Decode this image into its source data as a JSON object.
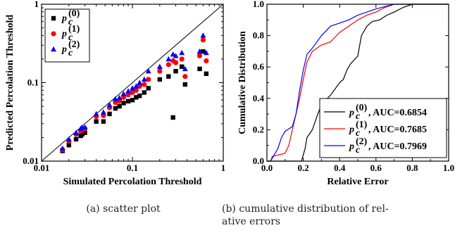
{
  "chart_data": [
    {
      "type": "scatter",
      "xlabel": "Simulated Percolation Threshold",
      "ylabel": "Predicted Percolation Threshold",
      "xscale": "log",
      "yscale": "log",
      "xlim": [
        0.01,
        1
      ],
      "ylim": [
        0.01,
        1
      ],
      "x_ticks": [
        "0.01",
        "0.1",
        "1"
      ],
      "y_ticks": [
        "0.01",
        "0.1",
        "1"
      ],
      "reference_line": "y = x",
      "legend": "top-left",
      "series": [
        {
          "name": "p_c^(0)",
          "name_parts": {
            "base": "p",
            "sub": "c",
            "sup": "(0)"
          },
          "color": "#000000",
          "marker": "square",
          "points": [
            [
              0.017,
              0.0135
            ],
            [
              0.02,
              0.016
            ],
            [
              0.024,
              0.019
            ],
            [
              0.027,
              0.021
            ],
            [
              0.028,
              0.022
            ],
            [
              0.03,
              0.023
            ],
            [
              0.04,
              0.032
            ],
            [
              0.048,
              0.032
            ],
            [
              0.056,
              0.04
            ],
            [
              0.065,
              0.047
            ],
            [
              0.072,
              0.05
            ],
            [
              0.08,
              0.055
            ],
            [
              0.09,
              0.058
            ],
            [
              0.1,
              0.06
            ],
            [
              0.11,
              0.065
            ],
            [
              0.12,
              0.068
            ],
            [
              0.135,
              0.075
            ],
            [
              0.15,
              0.085
            ],
            [
              0.2,
              0.11
            ],
            [
              0.25,
              0.12
            ],
            [
              0.28,
              0.036
            ],
            [
              0.3,
              0.14
            ],
            [
              0.35,
              0.16
            ],
            [
              0.38,
              0.095
            ],
            [
              0.55,
              0.15
            ],
            [
              0.6,
              0.25
            ],
            [
              0.65,
              0.13
            ]
          ]
        },
        {
          "name": "p_c^(1)",
          "name_parts": {
            "base": "p",
            "sub": "c",
            "sup": "(1)"
          },
          "color": "#ff0000",
          "marker": "circle",
          "points": [
            [
              0.017,
              0.014
            ],
            [
              0.02,
              0.018
            ],
            [
              0.024,
              0.022
            ],
            [
              0.027,
              0.024
            ],
            [
              0.028,
              0.025
            ],
            [
              0.03,
              0.026
            ],
            [
              0.04,
              0.037
            ],
            [
              0.048,
              0.038
            ],
            [
              0.056,
              0.048
            ],
            [
              0.065,
              0.056
            ],
            [
              0.072,
              0.058
            ],
            [
              0.08,
              0.065
            ],
            [
              0.09,
              0.07
            ],
            [
              0.1,
              0.075
            ],
            [
              0.11,
              0.08
            ],
            [
              0.12,
              0.09
            ],
            [
              0.135,
              0.095
            ],
            [
              0.15,
              0.11
            ],
            [
              0.2,
              0.14
            ],
            [
              0.25,
              0.17
            ],
            [
              0.28,
              0.19
            ],
            [
              0.3,
              0.18
            ],
            [
              0.35,
              0.2
            ],
            [
              0.38,
              0.12
            ],
            [
              0.55,
              0.22
            ],
            [
              0.6,
              0.35
            ],
            [
              0.65,
              0.19
            ]
          ]
        },
        {
          "name": "p_c^(2)",
          "name_parts": {
            "base": "p",
            "sub": "c",
            "sup": "(2)"
          },
          "color": "#0000ff",
          "marker": "triangle",
          "points": [
            [
              0.017,
              0.0145
            ],
            [
              0.02,
              0.019
            ],
            [
              0.024,
              0.023
            ],
            [
              0.027,
              0.026
            ],
            [
              0.028,
              0.027
            ],
            [
              0.03,
              0.027
            ],
            [
              0.04,
              0.04
            ],
            [
              0.048,
              0.042
            ],
            [
              0.056,
              0.052
            ],
            [
              0.065,
              0.062
            ],
            [
              0.072,
              0.064
            ],
            [
              0.08,
              0.072
            ],
            [
              0.09,
              0.078
            ],
            [
              0.1,
              0.085
            ],
            [
              0.11,
              0.09
            ],
            [
              0.12,
              0.1
            ],
            [
              0.135,
              0.11
            ],
            [
              0.15,
              0.14
            ],
            [
              0.2,
              0.16
            ],
            [
              0.25,
              0.2
            ],
            [
              0.28,
              0.23
            ],
            [
              0.3,
              0.22
            ],
            [
              0.35,
              0.24
            ],
            [
              0.38,
              0.15
            ],
            [
              0.55,
              0.25
            ],
            [
              0.6,
              0.4
            ],
            [
              0.65,
              0.24
            ]
          ]
        }
      ]
    },
    {
      "type": "line",
      "xlabel": "Relative Error",
      "ylabel": "Cumulative Distribution",
      "xlim": [
        0,
        1
      ],
      "ylim": [
        0,
        1
      ],
      "x_ticks": [
        "0.0",
        "0.2",
        "0.4",
        "0.6",
        "0.8",
        "1.0"
      ],
      "y_ticks": [
        "0.0",
        "0.2",
        "0.4",
        "0.6",
        "0.8",
        "1.0"
      ],
      "legend": "bottom-right",
      "series": [
        {
          "name": "p_c^(0), AUC=0.6854",
          "name_parts": {
            "base": "p",
            "sub": "c",
            "sup": "(0)",
            "suffix": ", AUC=0.6854"
          },
          "color": "#000000",
          "points": [
            [
              0.0,
              0.0
            ],
            [
              0.19,
              0.0
            ],
            [
              0.2,
              0.04
            ],
            [
              0.21,
              0.08
            ],
            [
              0.22,
              0.15
            ],
            [
              0.25,
              0.2
            ],
            [
              0.28,
              0.3
            ],
            [
              0.3,
              0.36
            ],
            [
              0.35,
              0.42
            ],
            [
              0.4,
              0.5
            ],
            [
              0.42,
              0.52
            ],
            [
              0.44,
              0.58
            ],
            [
              0.46,
              0.62
            ],
            [
              0.5,
              0.67
            ],
            [
              0.52,
              0.8
            ],
            [
              0.55,
              0.86
            ],
            [
              0.58,
              0.89
            ],
            [
              0.62,
              0.9
            ],
            [
              0.66,
              0.93
            ],
            [
              0.7,
              0.95
            ],
            [
              0.75,
              0.98
            ],
            [
              0.8,
              1.0
            ],
            [
              1.0,
              1.0
            ]
          ]
        },
        {
          "name": "p_c^(1), AUC=0.7685",
          "name_parts": {
            "base": "p",
            "sub": "c",
            "sup": "(1)",
            "suffix": ", AUC=0.7685"
          },
          "color": "#ff0000",
          "points": [
            [
              0.0,
              0.0
            ],
            [
              0.02,
              0.0
            ],
            [
              0.03,
              0.03
            ],
            [
              0.1,
              0.05
            ],
            [
              0.12,
              0.1
            ],
            [
              0.14,
              0.2
            ],
            [
              0.16,
              0.3
            ],
            [
              0.18,
              0.4
            ],
            [
              0.2,
              0.52
            ],
            [
              0.22,
              0.63
            ],
            [
              0.25,
              0.7
            ],
            [
              0.3,
              0.74
            ],
            [
              0.35,
              0.76
            ],
            [
              0.4,
              0.82
            ],
            [
              0.45,
              0.86
            ],
            [
              0.5,
              0.9
            ],
            [
              0.55,
              0.93
            ],
            [
              0.6,
              0.95
            ],
            [
              0.65,
              0.98
            ],
            [
              0.7,
              1.0
            ],
            [
              1.0,
              1.0
            ]
          ]
        },
        {
          "name": "p_c^(2), AUC=0.7969",
          "name_parts": {
            "base": "p",
            "sub": "c",
            "sup": "(2)",
            "suffix": ", AUC=0.7969"
          },
          "color": "#0000ff",
          "points": [
            [
              0.0,
              0.0
            ],
            [
              0.02,
              0.0
            ],
            [
              0.04,
              0.04
            ],
            [
              0.06,
              0.08
            ],
            [
              0.08,
              0.15
            ],
            [
              0.1,
              0.19
            ],
            [
              0.14,
              0.22
            ],
            [
              0.16,
              0.3
            ],
            [
              0.18,
              0.45
            ],
            [
              0.2,
              0.58
            ],
            [
              0.22,
              0.68
            ],
            [
              0.25,
              0.72
            ],
            [
              0.3,
              0.8
            ],
            [
              0.35,
              0.86
            ],
            [
              0.4,
              0.88
            ],
            [
              0.45,
              0.9
            ],
            [
              0.5,
              0.93
            ],
            [
              0.55,
              0.95
            ],
            [
              0.6,
              0.97
            ],
            [
              0.7,
              1.0
            ],
            [
              1.0,
              1.0
            ]
          ]
        }
      ]
    }
  ],
  "captions": [
    [
      "(a) scatter plot"
    ],
    [
      "(b) cumulative distribution of rel-",
      "ative errors"
    ]
  ]
}
